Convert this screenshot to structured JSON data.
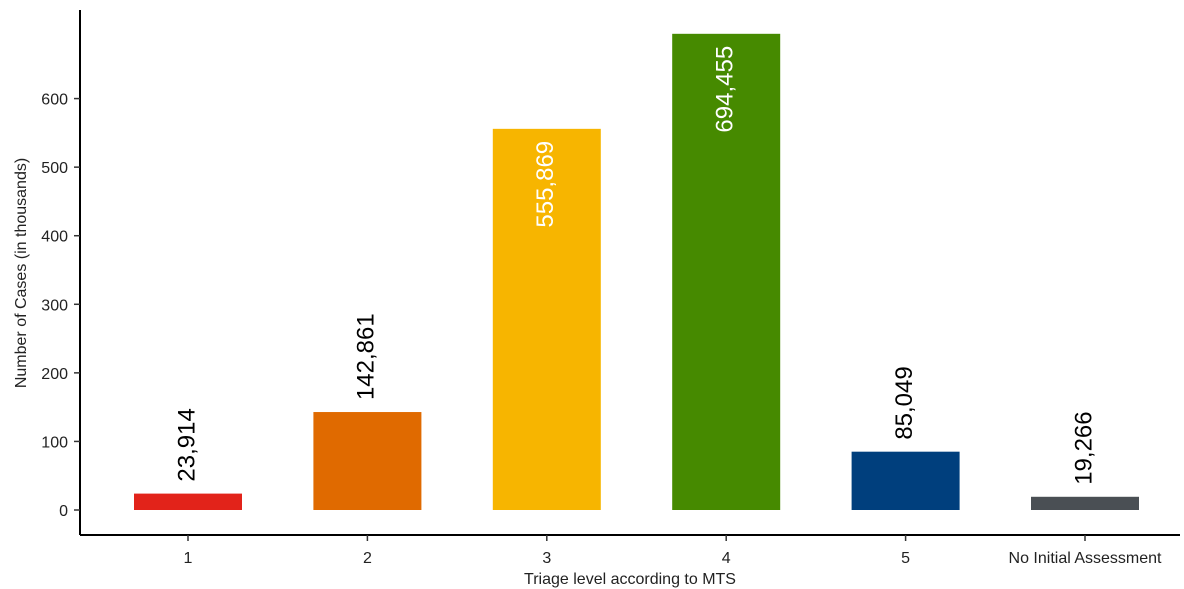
{
  "chart_data": {
    "type": "bar",
    "title": "",
    "xlabel": "Triage level according to MTS",
    "ylabel": "Number of Cases (in thousands)",
    "ylim": [
      0,
      700
    ],
    "yticks": [
      0,
      100,
      200,
      300,
      400,
      500,
      600
    ],
    "grid": false,
    "legend": "none",
    "categories": [
      "1",
      "2",
      "3",
      "4",
      "5",
      "No Initial Assessment"
    ],
    "values": [
      23.914,
      142.861,
      555.869,
      694.455,
      85.049,
      19.266
    ],
    "data_labels": [
      "23,914",
      "142,861",
      "555,869",
      "694,455",
      "85,049",
      "19,266"
    ],
    "label_inside": [
      false,
      false,
      true,
      true,
      false,
      false
    ],
    "colors": [
      "#e2231a",
      "#e06a00",
      "#f7b500",
      "#468a00",
      "#003f7d",
      "#4a4f54"
    ],
    "label_colors": [
      "#000000",
      "#000000",
      "#ffffff",
      "#ffffff",
      "#000000",
      "#000000"
    ]
  }
}
